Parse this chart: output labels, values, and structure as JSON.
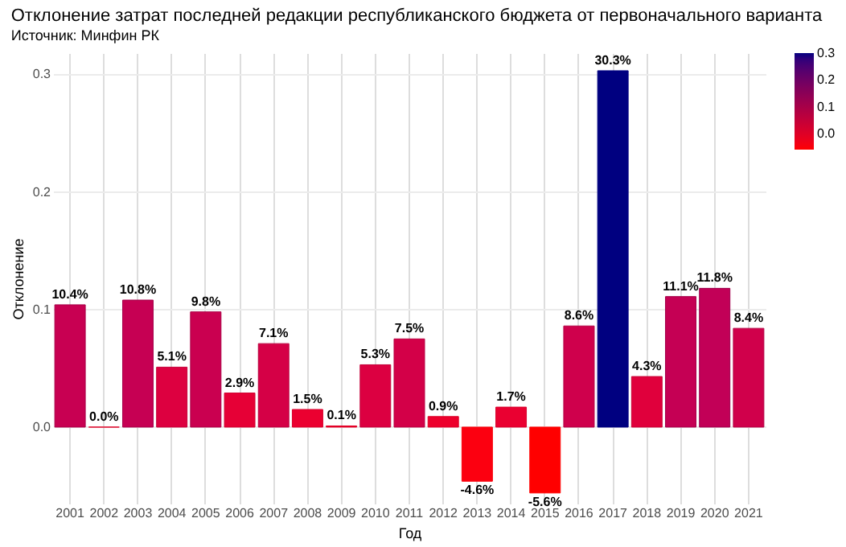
{
  "chart_data": {
    "type": "bar",
    "title": "Отклонение затрат последней редакции республиканского бюджета от первоначального варианта",
    "subtitle": "Источник: Минфин РК",
    "xlabel": "Год",
    "ylabel": "Отклонение",
    "categories": [
      "2001",
      "2002",
      "2003",
      "2004",
      "2005",
      "2006",
      "2007",
      "2008",
      "2009",
      "2010",
      "2011",
      "2012",
      "2013",
      "2014",
      "2015",
      "2016",
      "2017",
      "2018",
      "2019",
      "2020",
      "2021"
    ],
    "values": [
      0.104,
      0.0,
      0.108,
      0.051,
      0.098,
      0.029,
      0.071,
      0.015,
      0.001,
      0.053,
      0.075,
      0.009,
      -0.046,
      0.017,
      -0.056,
      0.086,
      0.303,
      0.043,
      0.111,
      0.118,
      0.084
    ],
    "value_labels": [
      "10.4%",
      "0.0%",
      "10.8%",
      "5.1%",
      "9.8%",
      "2.9%",
      "7.1%",
      "1.5%",
      "0.1%",
      "5.3%",
      "7.5%",
      "0.9%",
      "-4.6%",
      "1.7%",
      "-5.6%",
      "8.6%",
      "30.3%",
      "4.3%",
      "11.1%",
      "11.8%",
      "8.4%"
    ],
    "colors": [
      "#c80052",
      "#f00028",
      "#c60053",
      "#dd0040",
      "#ca0050",
      "#e60036",
      "#d50046",
      "#eb0030",
      "#f00028",
      "#dc0041",
      "#d30048",
      "#ed002c",
      "#fc0010",
      "#ea0031",
      "#ff0000",
      "#cf004c",
      "#000080",
      "#e0003c",
      "#c50054",
      "#c20057",
      "#d0004b"
    ],
    "ylim": [
      -0.065,
      0.318
    ],
    "yticks": [
      {
        "value": 0,
        "label": "0.0"
      },
      0.1,
      0.2,
      0.3
    ],
    "clim": [
      -0.056,
      0.303
    ],
    "cticks": [
      {
        "value": 0,
        "label": "0.0"
      },
      0.1,
      0.2,
      0.3
    ],
    "grid": true
  }
}
